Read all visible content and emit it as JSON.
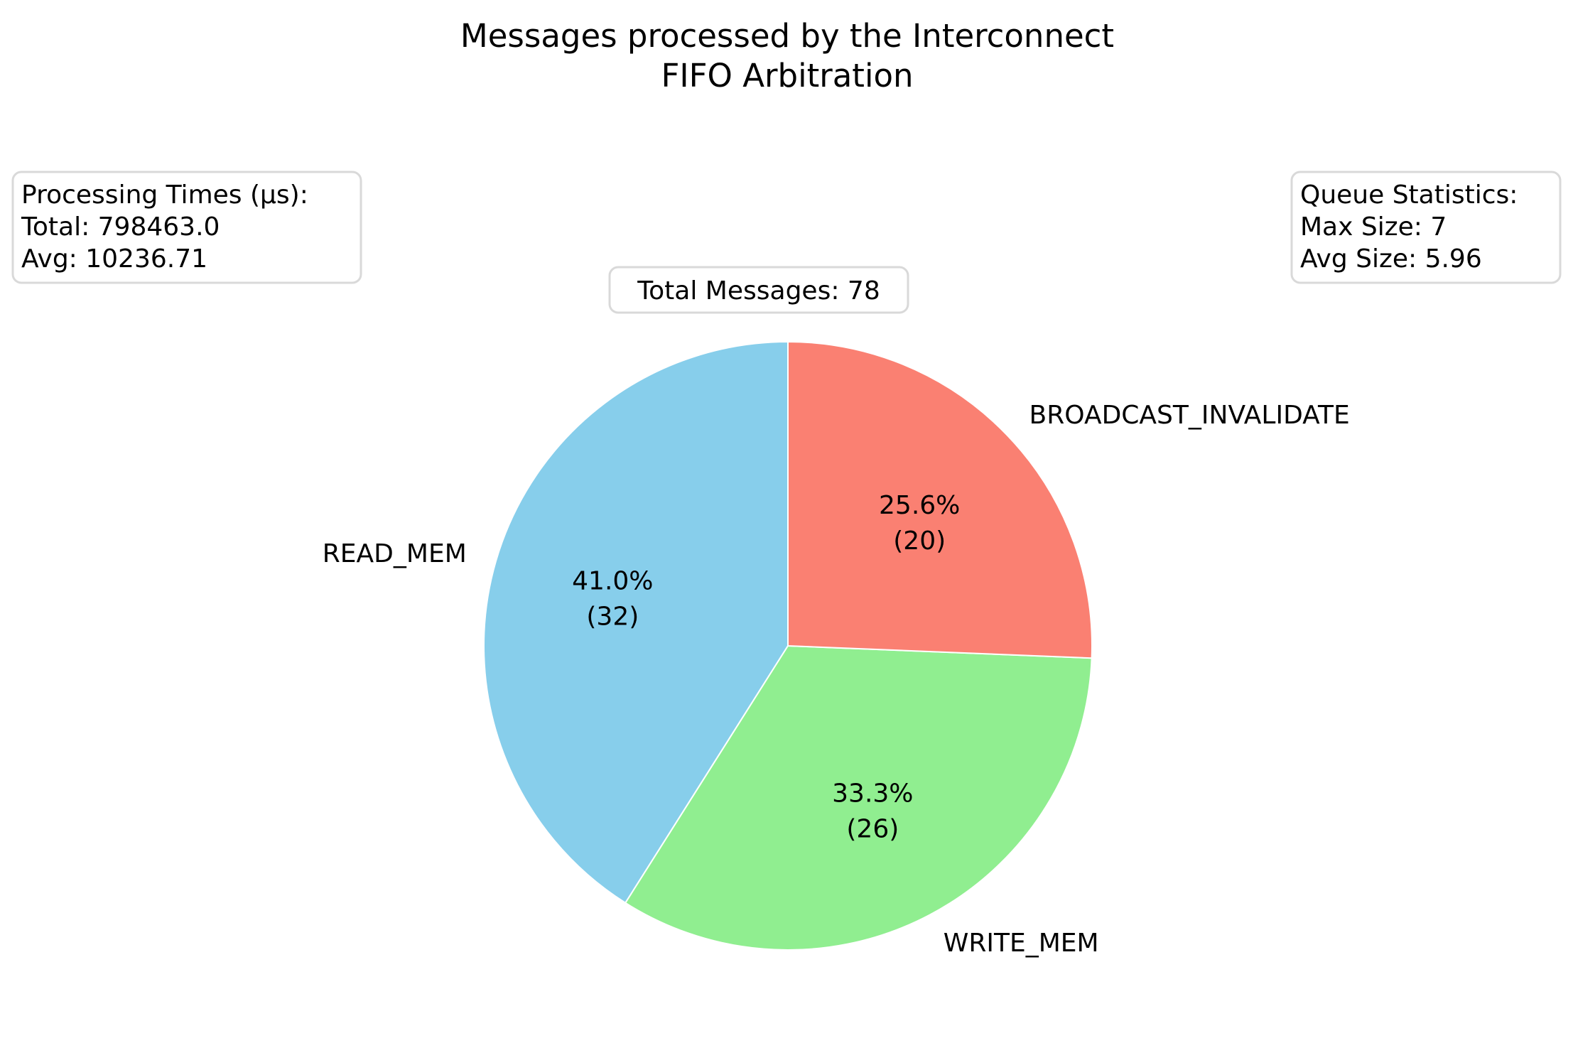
{
  "chart_data": {
    "type": "pie",
    "title": [
      "Messages processed by the Interconnect",
      "FIFO Arbitration"
    ],
    "categories": [
      "READ_MEM",
      "WRITE_MEM",
      "BROADCAST_INVALIDATE"
    ],
    "values": [
      32,
      26,
      20
    ],
    "percent_labels": [
      "41.0%",
      "33.3%",
      "25.6%"
    ],
    "count_labels": [
      "(32)",
      "(26)",
      "(20)"
    ],
    "colors": [
      "#87CEEB",
      "#90EE90",
      "#FA8072"
    ],
    "start_angle_deg": 90,
    "direction": "counterclockwise",
    "legend": "none"
  },
  "annotations": {
    "total_messages": "Total Messages: 78",
    "processing_times": [
      "Processing Times (µs):",
      "Total: 798463.0",
      "Avg: 10236.71"
    ],
    "queue_statistics": [
      "Queue Statistics:",
      "Max Size: 7",
      "Avg Size: 5.96"
    ]
  }
}
